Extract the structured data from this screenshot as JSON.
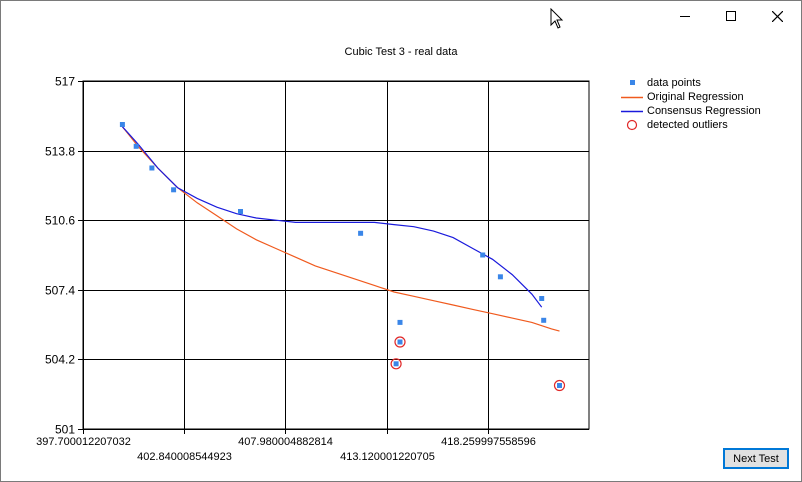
{
  "window": {
    "minimize_icon": "minimize-icon",
    "maximize_icon": "maximize-icon",
    "close_icon": "close-icon"
  },
  "next_button_label": "Next Test",
  "colors": {
    "data_points": "#3a86e8",
    "original": "#f05a1e",
    "consensus": "#1a1adc",
    "outliers": "#e02828",
    "grid": "#000000"
  },
  "chart_data": {
    "type": "scatter",
    "title": "Cubic Test 3 - real data",
    "xlabel": "",
    "ylabel": "",
    "xlim": [
      397.700012207032,
      423.4
    ],
    "ylim": [
      501,
      517
    ],
    "x_ticks": [
      "397.700012207032",
      "402.840008544923",
      "407.980004882814",
      "413.120001220705",
      "418.259997558596"
    ],
    "x_tick_values": [
      397.700012207032,
      402.840008544923,
      407.980004882814,
      413.120001220705,
      418.259997558596
    ],
    "y_ticks": [
      "501",
      "504.2",
      "507.4",
      "510.6",
      "513.8",
      "517"
    ],
    "y_tick_values": [
      501,
      504.2,
      507.4,
      510.6,
      513.8,
      517
    ],
    "grid": true,
    "legend_position": "right",
    "legend": [
      "data points",
      "Original Regression",
      "Consensus Regression",
      "detected outliers"
    ],
    "series": [
      {
        "name": "data points",
        "kind": "points",
        "x": [
          399.7,
          400.4,
          401.2,
          402.3,
          405.7,
          411.8,
          413.8,
          418.0,
          418.9,
          421.0,
          421.1
        ],
        "y": [
          515.0,
          514.0,
          513.0,
          512.0,
          511.0,
          510.0,
          505.9,
          509.0,
          508.0,
          507.0,
          506.0
        ]
      },
      {
        "name": "Original Regression",
        "kind": "line",
        "x": [
          399.7,
          400.5,
          401.5,
          402.5,
          403.5,
          404.5,
          405.5,
          406.5,
          407.5,
          408.5,
          409.5,
          410.5,
          411.5,
          412.5,
          413.5,
          414.5,
          415.5,
          416.5,
          417.5,
          418.5,
          419.5,
          420.5,
          421.5,
          421.9
        ],
        "y": [
          514.9,
          514.0,
          513.0,
          512.1,
          511.4,
          510.8,
          510.2,
          509.7,
          509.3,
          508.9,
          508.5,
          508.2,
          507.9,
          507.6,
          507.3,
          507.1,
          506.9,
          506.7,
          506.5,
          506.3,
          506.1,
          505.9,
          505.6,
          505.5
        ]
      },
      {
        "name": "Consensus Regression",
        "kind": "line",
        "x": [
          399.7,
          400.5,
          401.5,
          402.5,
          403.5,
          404.5,
          405.5,
          406.5,
          407.5,
          408.5,
          409.5,
          410.5,
          411.5,
          412.5,
          413.5,
          414.5,
          415.5,
          416.5,
          417.5,
          418.5,
          419.5,
          420.5,
          421.0
        ],
        "y": [
          514.9,
          514.1,
          513.0,
          512.1,
          511.6,
          511.2,
          510.9,
          510.7,
          510.6,
          510.5,
          510.5,
          510.5,
          510.5,
          510.5,
          510.4,
          510.3,
          510.1,
          509.8,
          509.3,
          508.8,
          508.1,
          507.2,
          506.6
        ]
      },
      {
        "name": "detected outliers",
        "kind": "outliers",
        "x": [
          413.6,
          413.8,
          421.9
        ],
        "y": [
          504.0,
          505.0,
          503.0
        ]
      }
    ]
  }
}
